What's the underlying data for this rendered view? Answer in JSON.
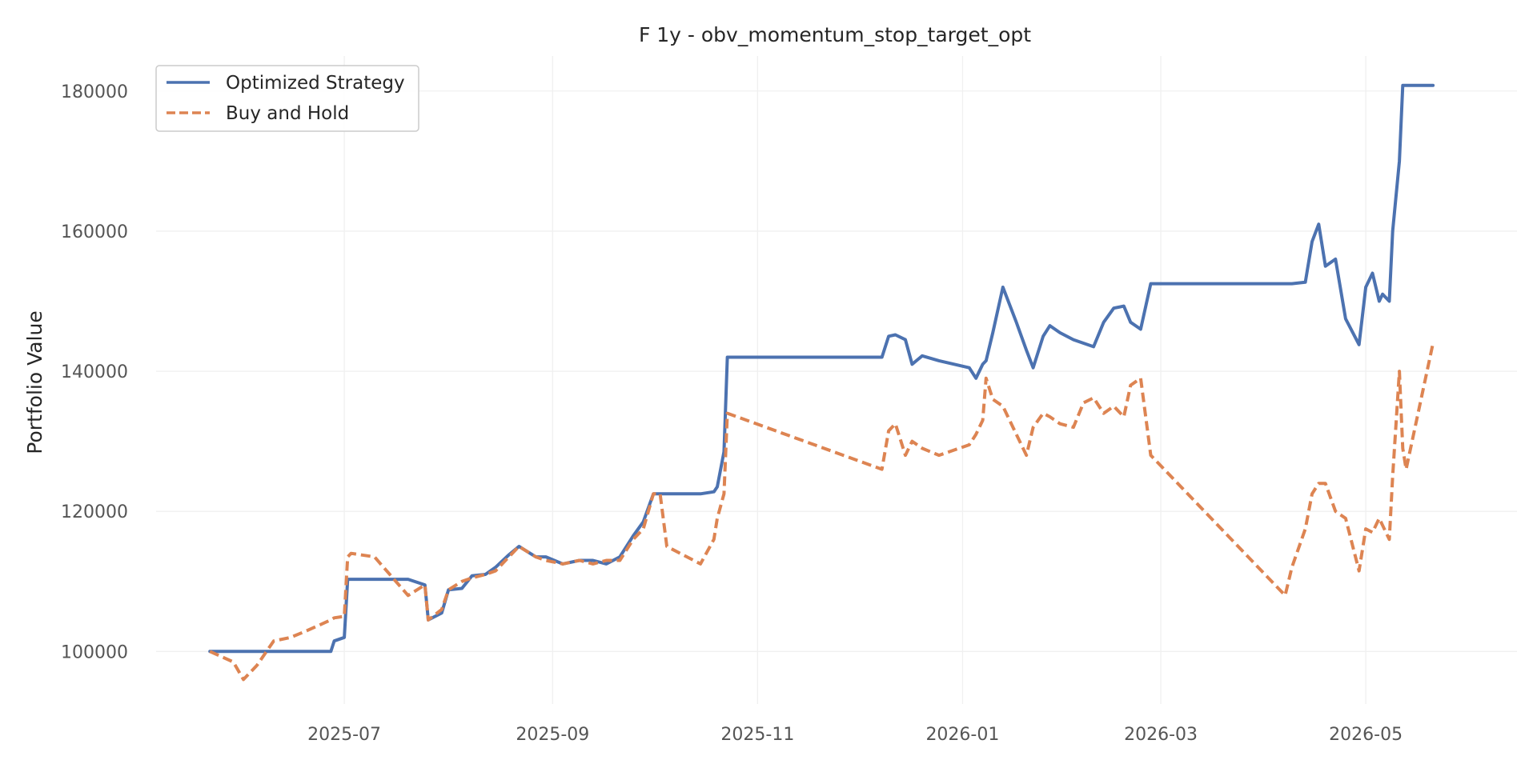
{
  "chart_data": {
    "type": "line",
    "title": "F 1y - obv_momentum_stop_target_opt",
    "xlabel": "",
    "ylabel": "Portfolio Value",
    "x_ticks": [
      "2025-07",
      "2025-09",
      "2025-11",
      "2026-01",
      "2026-03",
      "2026-05"
    ],
    "y_ticks": [
      100000,
      120000,
      140000,
      160000,
      180000
    ],
    "xlim": [
      "2025-05-06",
      "2026-06-15"
    ],
    "ylim": [
      92500,
      185000
    ],
    "grid": true,
    "legend_position": "top-left",
    "x": [
      "2025-05-22",
      "2025-05-29",
      "2025-06-01",
      "2025-06-05",
      "2025-06-10",
      "2025-06-15",
      "2025-06-20",
      "2025-06-27",
      "2025-06-28",
      "2025-07-01",
      "2025-07-02",
      "2025-07-03",
      "2025-07-10",
      "2025-07-20",
      "2025-07-25",
      "2025-07-26",
      "2025-07-30",
      "2025-08-01",
      "2025-08-05",
      "2025-08-08",
      "2025-08-12",
      "2025-08-15",
      "2025-08-19",
      "2025-08-22",
      "2025-08-27",
      "2025-08-30",
      "2025-09-04",
      "2025-09-09",
      "2025-09-13",
      "2025-09-17",
      "2025-09-21",
      "2025-09-25",
      "2025-09-28",
      "2025-10-01",
      "2025-10-03",
      "2025-10-05",
      "2025-10-15",
      "2025-10-19",
      "2025-10-20",
      "2025-10-22",
      "2025-10-23",
      "2025-12-08",
      "2025-12-10",
      "2025-12-12",
      "2025-12-15",
      "2025-12-17",
      "2025-12-20",
      "2025-12-25",
      "2026-01-03",
      "2026-01-05",
      "2026-01-07",
      "2026-01-08",
      "2026-01-10",
      "2026-01-13",
      "2026-01-17",
      "2026-01-20",
      "2026-01-22",
      "2026-01-25",
      "2026-01-27",
      "2026-01-30",
      "2026-02-03",
      "2026-02-06",
      "2026-02-09",
      "2026-02-12",
      "2026-02-15",
      "2026-02-18",
      "2026-02-20",
      "2026-02-23",
      "2026-02-26",
      "2026-04-07",
      "2026-04-09",
      "2026-04-13",
      "2026-04-15",
      "2026-04-17",
      "2026-04-19",
      "2026-04-22",
      "2026-04-25",
      "2026-04-29",
      "2026-05-01",
      "2026-05-03",
      "2026-05-05",
      "2026-05-06",
      "2026-05-08",
      "2026-05-09",
      "2026-05-11",
      "2026-05-12",
      "2026-05-13",
      "2026-05-21"
    ],
    "series": [
      {
        "name": "Optimized Strategy",
        "color": "#4C72B0",
        "style": "solid",
        "values": [
          100000,
          100000,
          100000,
          100000,
          100000,
          100000,
          100000,
          100000,
          101500,
          102000,
          110300,
          110300,
          110300,
          110300,
          109500,
          104500,
          105500,
          108800,
          109000,
          110800,
          111000,
          112000,
          113800,
          115000,
          113500,
          113500,
          112500,
          113000,
          113000,
          112500,
          113500,
          116500,
          118500,
          122500,
          122500,
          122500,
          122500,
          122800,
          123500,
          128500,
          142000,
          142000,
          145000,
          145200,
          144500,
          141000,
          142200,
          141500,
          140500,
          139000,
          141000,
          141500,
          145500,
          152000,
          147000,
          143000,
          140500,
          145000,
          146500,
          145500,
          144500,
          144000,
          143500,
          147000,
          149000,
          149300,
          147000,
          146000,
          152500,
          152500,
          152500,
          152700,
          158500,
          161000,
          155000,
          156000,
          147500,
          143800,
          152000,
          154000,
          150000,
          151000,
          150000,
          160000,
          170000,
          180800,
          180800,
          180800
        ]
      },
      {
        "name": "Buy and Hold",
        "color": "#DD8452",
        "style": "dashed",
        "values": [
          100000,
          98500,
          96000,
          98000,
          101500,
          102000,
          103000,
          104500,
          104800,
          105000,
          113500,
          114000,
          113500,
          108000,
          109500,
          104500,
          106000,
          108800,
          110000,
          110500,
          111000,
          111500,
          113500,
          115000,
          113500,
          113000,
          112500,
          113000,
          112500,
          113000,
          113000,
          116000,
          117500,
          122500,
          122500,
          115000,
          112500,
          116000,
          119000,
          122500,
          134000,
          126000,
          131500,
          132500,
          128000,
          130000,
          129000,
          128000,
          129500,
          131000,
          133000,
          139000,
          136000,
          135000,
          131000,
          128000,
          132000,
          134000,
          133500,
          132500,
          132000,
          135500,
          136200,
          134000,
          135000,
          133500,
          138000,
          139000,
          128000,
          108000,
          112000,
          117500,
          122500,
          124000,
          124000,
          120000,
          119000,
          111500,
          117500,
          117000,
          119000,
          118000,
          116000,
          125000,
          140000,
          129000,
          126000,
          144000
        ]
      }
    ]
  }
}
